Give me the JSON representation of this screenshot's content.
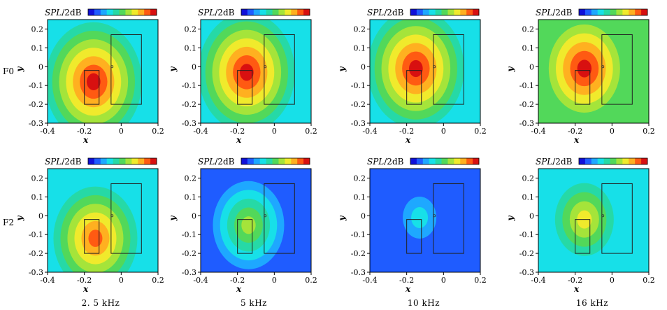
{
  "figure": {
    "colorbar_title_italic": "SPL",
    "colorbar_title_unit": "/2dB",
    "xlabel": "x",
    "ylabel": "y",
    "row_labels": [
      "F0",
      "F2"
    ],
    "column_labels": [
      "2. 5 kHz",
      "5 kHz",
      "10 kHz",
      "16 kHz"
    ],
    "colorbar_colors": [
      "#1010d8",
      "#1f5cff",
      "#1ea8ff",
      "#17e0e8",
      "#26d9a6",
      "#52d85a",
      "#a5e43a",
      "#f0ea2c",
      "#ffb020",
      "#ff5a12",
      "#d81010"
    ]
  },
  "chart_data": [
    {
      "type": "heatmap",
      "panel": "F0 2.5 kHz",
      "row": "F0",
      "frequency": "2. 5 kHz",
      "xlabel": "x",
      "ylabel": "y",
      "xlim": [
        -0.4,
        0.2
      ],
      "ylim": [
        -0.3,
        0.25
      ],
      "xticks": [
        -0.4,
        -0.2,
        0,
        0.2
      ],
      "yticks": [
        0.2,
        0.1,
        0,
        -0.1,
        -0.2,
        -0.3
      ],
      "xtick_labels": [
        "-0.4",
        "-0.2",
        "0",
        "0.2"
      ],
      "ytick_labels": [
        "0.2",
        "0.1",
        "0",
        "-0.1",
        "-0.2",
        "-0.3"
      ],
      "background_level": 3,
      "peak": {
        "x": -0.15,
        "y": -0.08,
        "level": 10
      }
    },
    {
      "type": "heatmap",
      "panel": "F0 5 kHz",
      "row": "F0",
      "frequency": "5 kHz",
      "xlabel": "x",
      "ylabel": "y",
      "xlim": [
        -0.4,
        0.2
      ],
      "ylim": [
        -0.3,
        0.25
      ],
      "xticks": [
        -0.4,
        -0.2,
        0,
        0.2
      ],
      "yticks": [
        0.2,
        0.1,
        0,
        -0.1,
        -0.2,
        -0.3
      ],
      "xtick_labels": [
        "-0.4",
        "-0.2",
        "0",
        "0.2"
      ],
      "ytick_labels": [
        "0.2",
        "0.1",
        "0",
        "-0.1",
        "-0.2",
        "-0.3"
      ],
      "background_level": 3,
      "peak": {
        "x": -0.15,
        "y": -0.03,
        "level": 10
      }
    },
    {
      "type": "heatmap",
      "panel": "F0 10 kHz",
      "row": "F0",
      "frequency": "10 kHz",
      "xlabel": "x",
      "ylabel": "y",
      "xlim": [
        -0.4,
        0.2
      ],
      "ylim": [
        -0.3,
        0.25
      ],
      "xticks": [
        -0.4,
        -0.2,
        0,
        0.2
      ],
      "yticks": [
        0.2,
        0.1,
        0,
        -0.1,
        -0.2,
        -0.3
      ],
      "xtick_labels": [
        "-0.4",
        "-0.2",
        "0",
        "0.2"
      ],
      "ytick_labels": [
        "0.2",
        "0.1",
        "0",
        "-0.1",
        "-0.2",
        "-0.3"
      ],
      "background_level": 3,
      "peak": {
        "x": -0.15,
        "y": -0.01,
        "level": 10
      }
    },
    {
      "type": "heatmap",
      "panel": "F0 16 kHz",
      "row": "F0",
      "frequency": "16 kHz",
      "xlabel": "x",
      "ylabel": "y",
      "xlim": [
        -0.4,
        0.2
      ],
      "ylim": [
        -0.3,
        0.25
      ],
      "xticks": [
        -0.4,
        -0.2,
        0,
        0.2
      ],
      "yticks": [
        0.2,
        0.1,
        0,
        -0.1,
        -0.2,
        -0.3
      ],
      "xtick_labels": [
        "-0.4",
        "-0.2",
        "0",
        "0.2"
      ],
      "ytick_labels": [
        "0.2",
        "0.1",
        "0",
        "-0.1",
        "-0.2",
        "-0.3"
      ],
      "background_level": 5,
      "peak": {
        "x": -0.15,
        "y": -0.01,
        "level": 10
      }
    },
    {
      "type": "heatmap",
      "panel": "F2 2.5 kHz",
      "row": "F2",
      "frequency": "2. 5 kHz",
      "xlabel": "x",
      "ylabel": "y",
      "xlim": [
        -0.4,
        0.2
      ],
      "ylim": [
        -0.3,
        0.25
      ],
      "xticks": [
        -0.4,
        -0.2,
        0,
        0.2
      ],
      "yticks": [
        0.2,
        0.1,
        0,
        -0.1,
        -0.2,
        -0.3
      ],
      "xtick_labels": [
        "-0.4",
        "-0.2",
        "0",
        "0.2"
      ],
      "ytick_labels": [
        "0.2",
        "0.1",
        "0",
        "-0.1",
        "-0.2",
        "-0.3"
      ],
      "background_level": 3,
      "peak": {
        "x": -0.14,
        "y": -0.12,
        "level": 9
      }
    },
    {
      "type": "heatmap",
      "panel": "F2 5 kHz",
      "row": "F2",
      "frequency": "5 kHz",
      "xlabel": "x",
      "ylabel": "y",
      "xlim": [
        -0.4,
        0.2
      ],
      "ylim": [
        -0.3,
        0.25
      ],
      "xticks": [
        -0.4,
        -0.2,
        0,
        0.2
      ],
      "yticks": [
        0.2,
        0.1,
        0,
        -0.1,
        -0.2,
        -0.3
      ],
      "xtick_labels": [
        "-0.4",
        "-0.2",
        "0",
        "0.2"
      ],
      "ytick_labels": [
        "0.2",
        "0.1",
        "0",
        "-0.1",
        "-0.2",
        "-0.3"
      ],
      "background_level": 1,
      "peak": {
        "x": -0.14,
        "y": -0.05,
        "level": 6
      }
    },
    {
      "type": "heatmap",
      "panel": "F2 10 kHz",
      "row": "F2",
      "frequency": "10 kHz",
      "xlabel": "x",
      "ylabel": "y",
      "xlim": [
        -0.4,
        0.2
      ],
      "ylim": [
        -0.3,
        0.25
      ],
      "xticks": [
        -0.4,
        -0.2,
        0,
        0.2
      ],
      "yticks": [
        0.2,
        0.1,
        0,
        -0.1,
        -0.2,
        -0.3
      ],
      "xtick_labels": [
        "-0.4",
        "-0.2",
        "0",
        "0.2"
      ],
      "ytick_labels": [
        "0.2",
        "0.1",
        "0",
        "-0.1",
        "-0.2",
        "-0.3"
      ],
      "background_level": 1,
      "peak": {
        "x": -0.13,
        "y": -0.01,
        "level": 3
      }
    },
    {
      "type": "heatmap",
      "panel": "F2 16 kHz",
      "row": "F2",
      "frequency": "16 kHz",
      "xlabel": "x",
      "ylabel": "y",
      "xlim": [
        -0.4,
        0.2
      ],
      "ylim": [
        -0.3,
        0.25
      ],
      "xticks": [
        -0.4,
        -0.2,
        0,
        0.2
      ],
      "yticks": [
        0.2,
        0.1,
        0,
        -0.1,
        -0.2,
        -0.3
      ],
      "xtick_labels": [
        "-0.4",
        "-0.2",
        "0",
        "0.2"
      ],
      "ytick_labels": [
        "0.2",
        "0.1",
        "0",
        "-0.1",
        "-0.2",
        "-0.3"
      ],
      "background_level": 3,
      "peak": {
        "x": -0.15,
        "y": -0.02,
        "level": 7
      }
    }
  ]
}
